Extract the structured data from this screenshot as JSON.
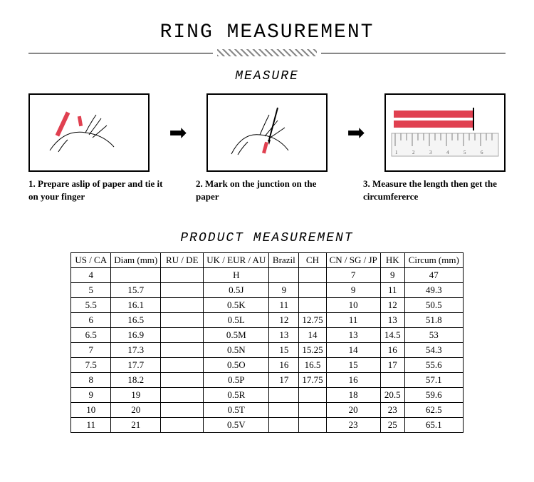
{
  "title": "RING MEASUREMENT",
  "measure_heading": "MEASURE",
  "steps": [
    {
      "caption": "1. Prepare aslip of paper and tie it on your finger"
    },
    {
      "caption": "2. Mark on the junction on the paper"
    },
    {
      "caption": "3. Measure the length then get the circumfererce"
    }
  ],
  "product_heading": "PRODUCT MEASUREMENT",
  "accent_color": "#e04050",
  "table": {
    "columns": [
      "US / CA",
      "Diam (mm)",
      "RU / DE",
      "UK / EUR / AU",
      "Brazil",
      "CH",
      "CN / SG / JP",
      "HK",
      "Circum (mm)"
    ],
    "rows": [
      [
        "4",
        "",
        "",
        "H",
        "",
        "",
        "7",
        "9",
        "47"
      ],
      [
        "5",
        "15.7",
        "",
        "0.5J",
        "9",
        "",
        "9",
        "11",
        "49.3"
      ],
      [
        "5.5",
        "16.1",
        "",
        "0.5K",
        "11",
        "",
        "10",
        "12",
        "50.5"
      ],
      [
        "6",
        "16.5",
        "",
        "0.5L",
        "12",
        "12.75",
        "11",
        "13",
        "51.8"
      ],
      [
        "6.5",
        "16.9",
        "",
        "0.5M",
        "13",
        "14",
        "13",
        "14.5",
        "53"
      ],
      [
        "7",
        "17.3",
        "",
        "0.5N",
        "15",
        "15.25",
        "14",
        "16",
        "54.3"
      ],
      [
        "7.5",
        "17.7",
        "",
        "0.5O",
        "16",
        "16.5",
        "15",
        "17",
        "55.6"
      ],
      [
        "8",
        "18.2",
        "",
        "0.5P",
        "17",
        "17.75",
        "16",
        "",
        "57.1"
      ],
      [
        "9",
        "19",
        "",
        "0.5R",
        "",
        "",
        "18",
        "20.5",
        "59.6"
      ],
      [
        "10",
        "20",
        "",
        "0.5T",
        "",
        "",
        "20",
        "23",
        "62.5"
      ],
      [
        "11",
        "21",
        "",
        "0.5V",
        "",
        "",
        "23",
        "25",
        "65.1"
      ]
    ]
  },
  "styling": {
    "title_fontsize": 28,
    "subtitle_fontsize": 18,
    "table_fontsize": 13,
    "background": "#ffffff",
    "border_color": "#000000",
    "ruler_tick_color": "#808080",
    "step_box_border": 2
  }
}
